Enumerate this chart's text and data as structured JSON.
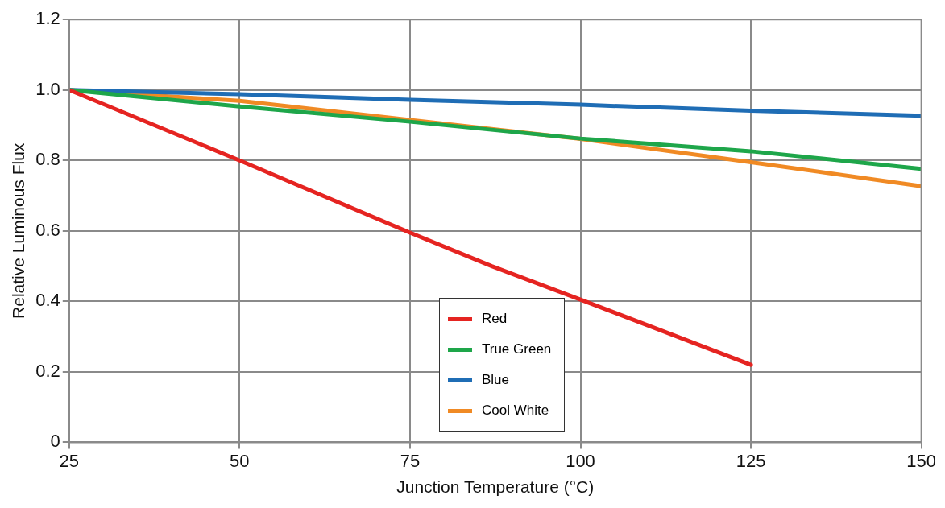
{
  "chart_data": {
    "type": "line",
    "xlabel": "Junction Temperature (°C)",
    "ylabel": "Relative Luminous Flux",
    "xlim": [
      25,
      150
    ],
    "xticks": [
      25,
      50,
      75,
      100,
      125,
      150
    ],
    "ylim": [
      0,
      1.2
    ],
    "yticks": [
      0,
      0.2,
      0.4,
      0.6,
      0.8,
      {
        "value": 1,
        "label": "1.0"
      },
      1.2
    ],
    "grid": true,
    "legend": "bottom",
    "line_style": "solid",
    "marker": "none",
    "series": [
      {
        "name": "Red",
        "color": "#e52421",
        "x": [
          25,
          50,
          75,
          87,
          100,
          125
        ],
        "values": [
          1.0,
          0.8,
          0.595,
          0.5,
          0.405,
          0.22
        ]
      },
      {
        "name": "True Green",
        "color": "#1ea64a",
        "x": [
          25,
          50,
          75,
          100,
          125,
          150
        ],
        "values": [
          1.0,
          0.953,
          0.91,
          0.862,
          0.826,
          0.776
        ]
      },
      {
        "name": "Blue",
        "color": "#1f6db5",
        "x": [
          25,
          50,
          75,
          100,
          125,
          150
        ],
        "values": [
          1.0,
          0.988,
          0.972,
          0.958,
          0.941,
          0.927
        ]
      },
      {
        "name": "Cool White",
        "color": "#f08a24",
        "x": [
          25,
          50,
          75,
          100,
          125,
          150
        ],
        "values": [
          1.0,
          0.969,
          0.915,
          0.861,
          0.795,
          0.727
        ]
      }
    ]
  }
}
